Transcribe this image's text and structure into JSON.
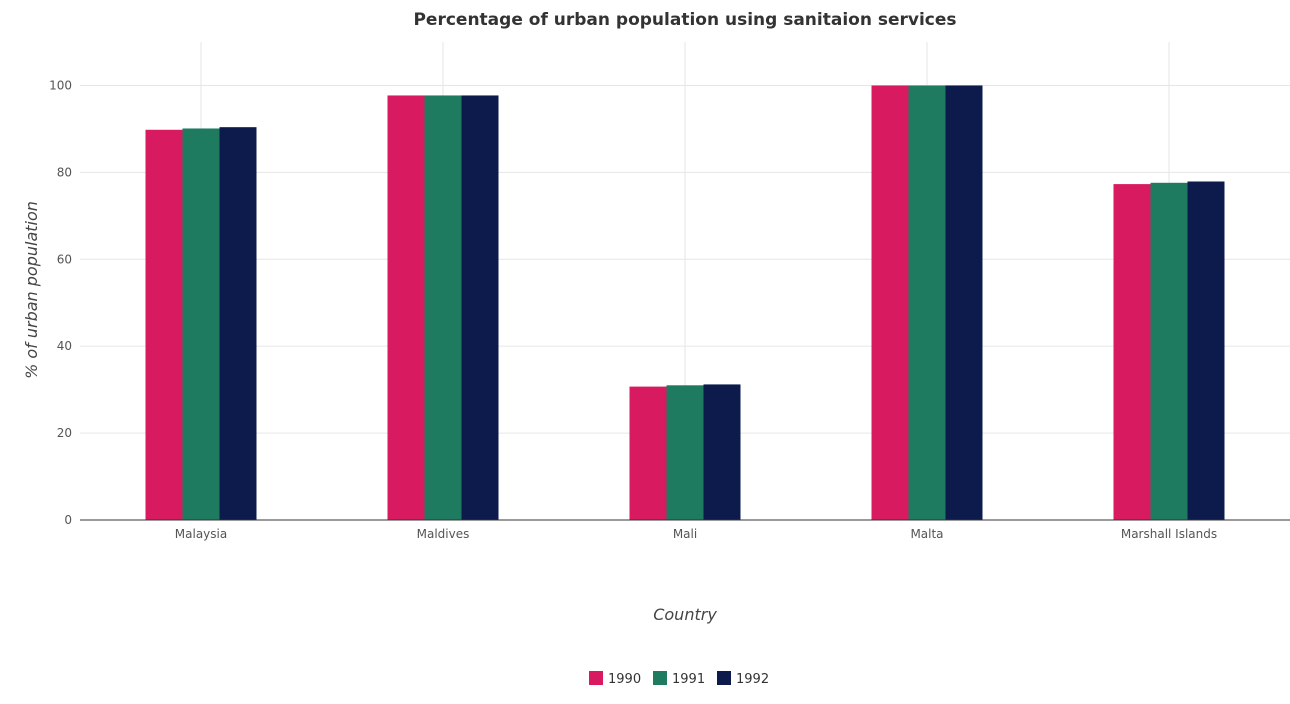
{
  "chart_data": {
    "type": "bar",
    "title": "Percentage of urban population using sanitaion services",
    "xlabel": "Country",
    "ylabel": "% of urban population",
    "categories": [
      "Malaysia",
      "Maldives",
      "Mali",
      "Malta",
      "Marshall Islands"
    ],
    "series": [
      {
        "name": "1990",
        "color": "#d81b60",
        "values": [
          89.8,
          97.7,
          30.7,
          100,
          77.3
        ]
      },
      {
        "name": "1991",
        "color": "#1e7b60",
        "values": [
          90.1,
          97.7,
          31.0,
          100,
          77.6
        ]
      },
      {
        "name": "1992",
        "color": "#0d1b4c",
        "values": [
          90.4,
          97.7,
          31.2,
          100,
          77.9
        ]
      }
    ],
    "ylim": [
      0,
      110
    ],
    "yticks": [
      0,
      20,
      40,
      60,
      80,
      100
    ],
    "grid": true,
    "legend_position": "bottom-center"
  }
}
